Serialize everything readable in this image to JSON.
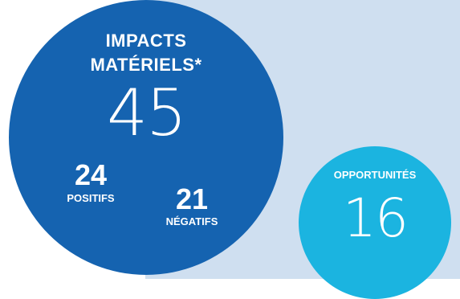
{
  "colors": {
    "background_panel": "#cfdff0",
    "impacts_circle": "#1563b0",
    "opportunities_circle": "#1bb4e0",
    "text": "#ffffff"
  },
  "impacts": {
    "title_line1": "IMPACTS",
    "title_line2": "MATÉRIELS*",
    "total": "45",
    "positive": {
      "count": "24",
      "label": "POSITIFS"
    },
    "negative": {
      "count": "21",
      "label": "NÉGATIFS"
    }
  },
  "opportunities": {
    "title": "OPPORTUNITÉS",
    "total": "16"
  }
}
